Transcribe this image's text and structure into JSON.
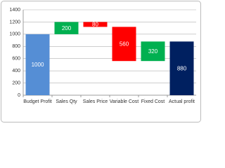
{
  "chart_data": {
    "type": "waterfall",
    "categories": [
      "Budget Profit",
      "Sales Qty",
      "Sales Price",
      "Variable Cost",
      "Fixed Cost",
      "Actual profit"
    ],
    "values": [
      1000,
      200,
      -80,
      -560,
      320,
      880
    ],
    "value_labels": [
      "1000",
      "200",
      "80",
      "560",
      "320",
      "880"
    ],
    "measure": [
      "total",
      "relative",
      "relative",
      "relative",
      "relative",
      "total"
    ],
    "colors": [
      "#558ed5",
      "#00b050",
      "#ff0000",
      "#ff0000",
      "#00b050",
      "#002060"
    ],
    "ylim": [
      0,
      1400
    ],
    "yticks": [
      0,
      200,
      400,
      600,
      800,
      1000,
      1200,
      1400
    ],
    "grid": true
  }
}
